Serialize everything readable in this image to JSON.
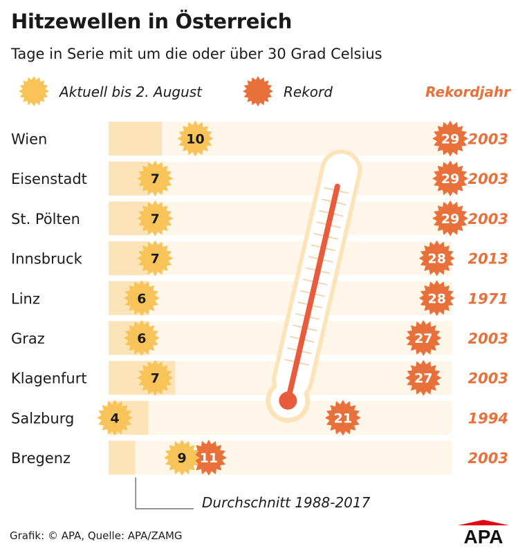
{
  "header": {
    "title": "Hitzewellen in Österreich",
    "subtitle": "Tage in Serie mit um die oder über 30 Grad Celsius"
  },
  "legend": {
    "current_label": "Aktuell bis 2. August",
    "record_label": "Rekord",
    "record_year_label": "Rekordjahr"
  },
  "average_label": "Durchschnitt 1988-2017",
  "footer": {
    "credit": "Grafik: © APA, Quelle: APA/ZAMG",
    "logo_text": "APA"
  },
  "colors": {
    "sun_yellow": "#F8C459",
    "record_orange": "#E8703A",
    "avg_bar": "#FCE3B8",
    "row_bg": "#FEF6E8",
    "text_orange": "#E8703A",
    "logo_red": "#E30613",
    "thermo_red": "#E85B3C"
  },
  "chart_data": {
    "type": "bar",
    "title": "Hitzewellen in Österreich",
    "subtitle": "Tage in Serie mit um die oder über 30 Grad Celsius",
    "categories": [
      "Wien",
      "Eisenstadt",
      "St. Pölten",
      "Innsbruck",
      "Linz",
      "Graz",
      "Klagenfurt",
      "Salzburg",
      "Bregenz"
    ],
    "series": [
      {
        "name": "Aktuell bis 2. August",
        "values": [
          10,
          7,
          7,
          7,
          6,
          6,
          7,
          4,
          9
        ]
      },
      {
        "name": "Rekord",
        "values": [
          29,
          29,
          29,
          28,
          28,
          27,
          27,
          21,
          11
        ]
      },
      {
        "name": "Durchschnitt 1988-2017",
        "values": [
          7.5,
          6.5,
          6.5,
          6.5,
          6.5,
          6.5,
          8.5,
          6.5,
          5.5
        ]
      }
    ],
    "record_years": [
      "2003",
      "2003",
      "2003",
      "2013",
      "1971",
      "2003",
      "2003",
      "1994",
      "2003"
    ],
    "xlim": [
      0,
      29
    ],
    "xlabel": "",
    "ylabel": "",
    "legend_position": "top",
    "grid": false
  }
}
